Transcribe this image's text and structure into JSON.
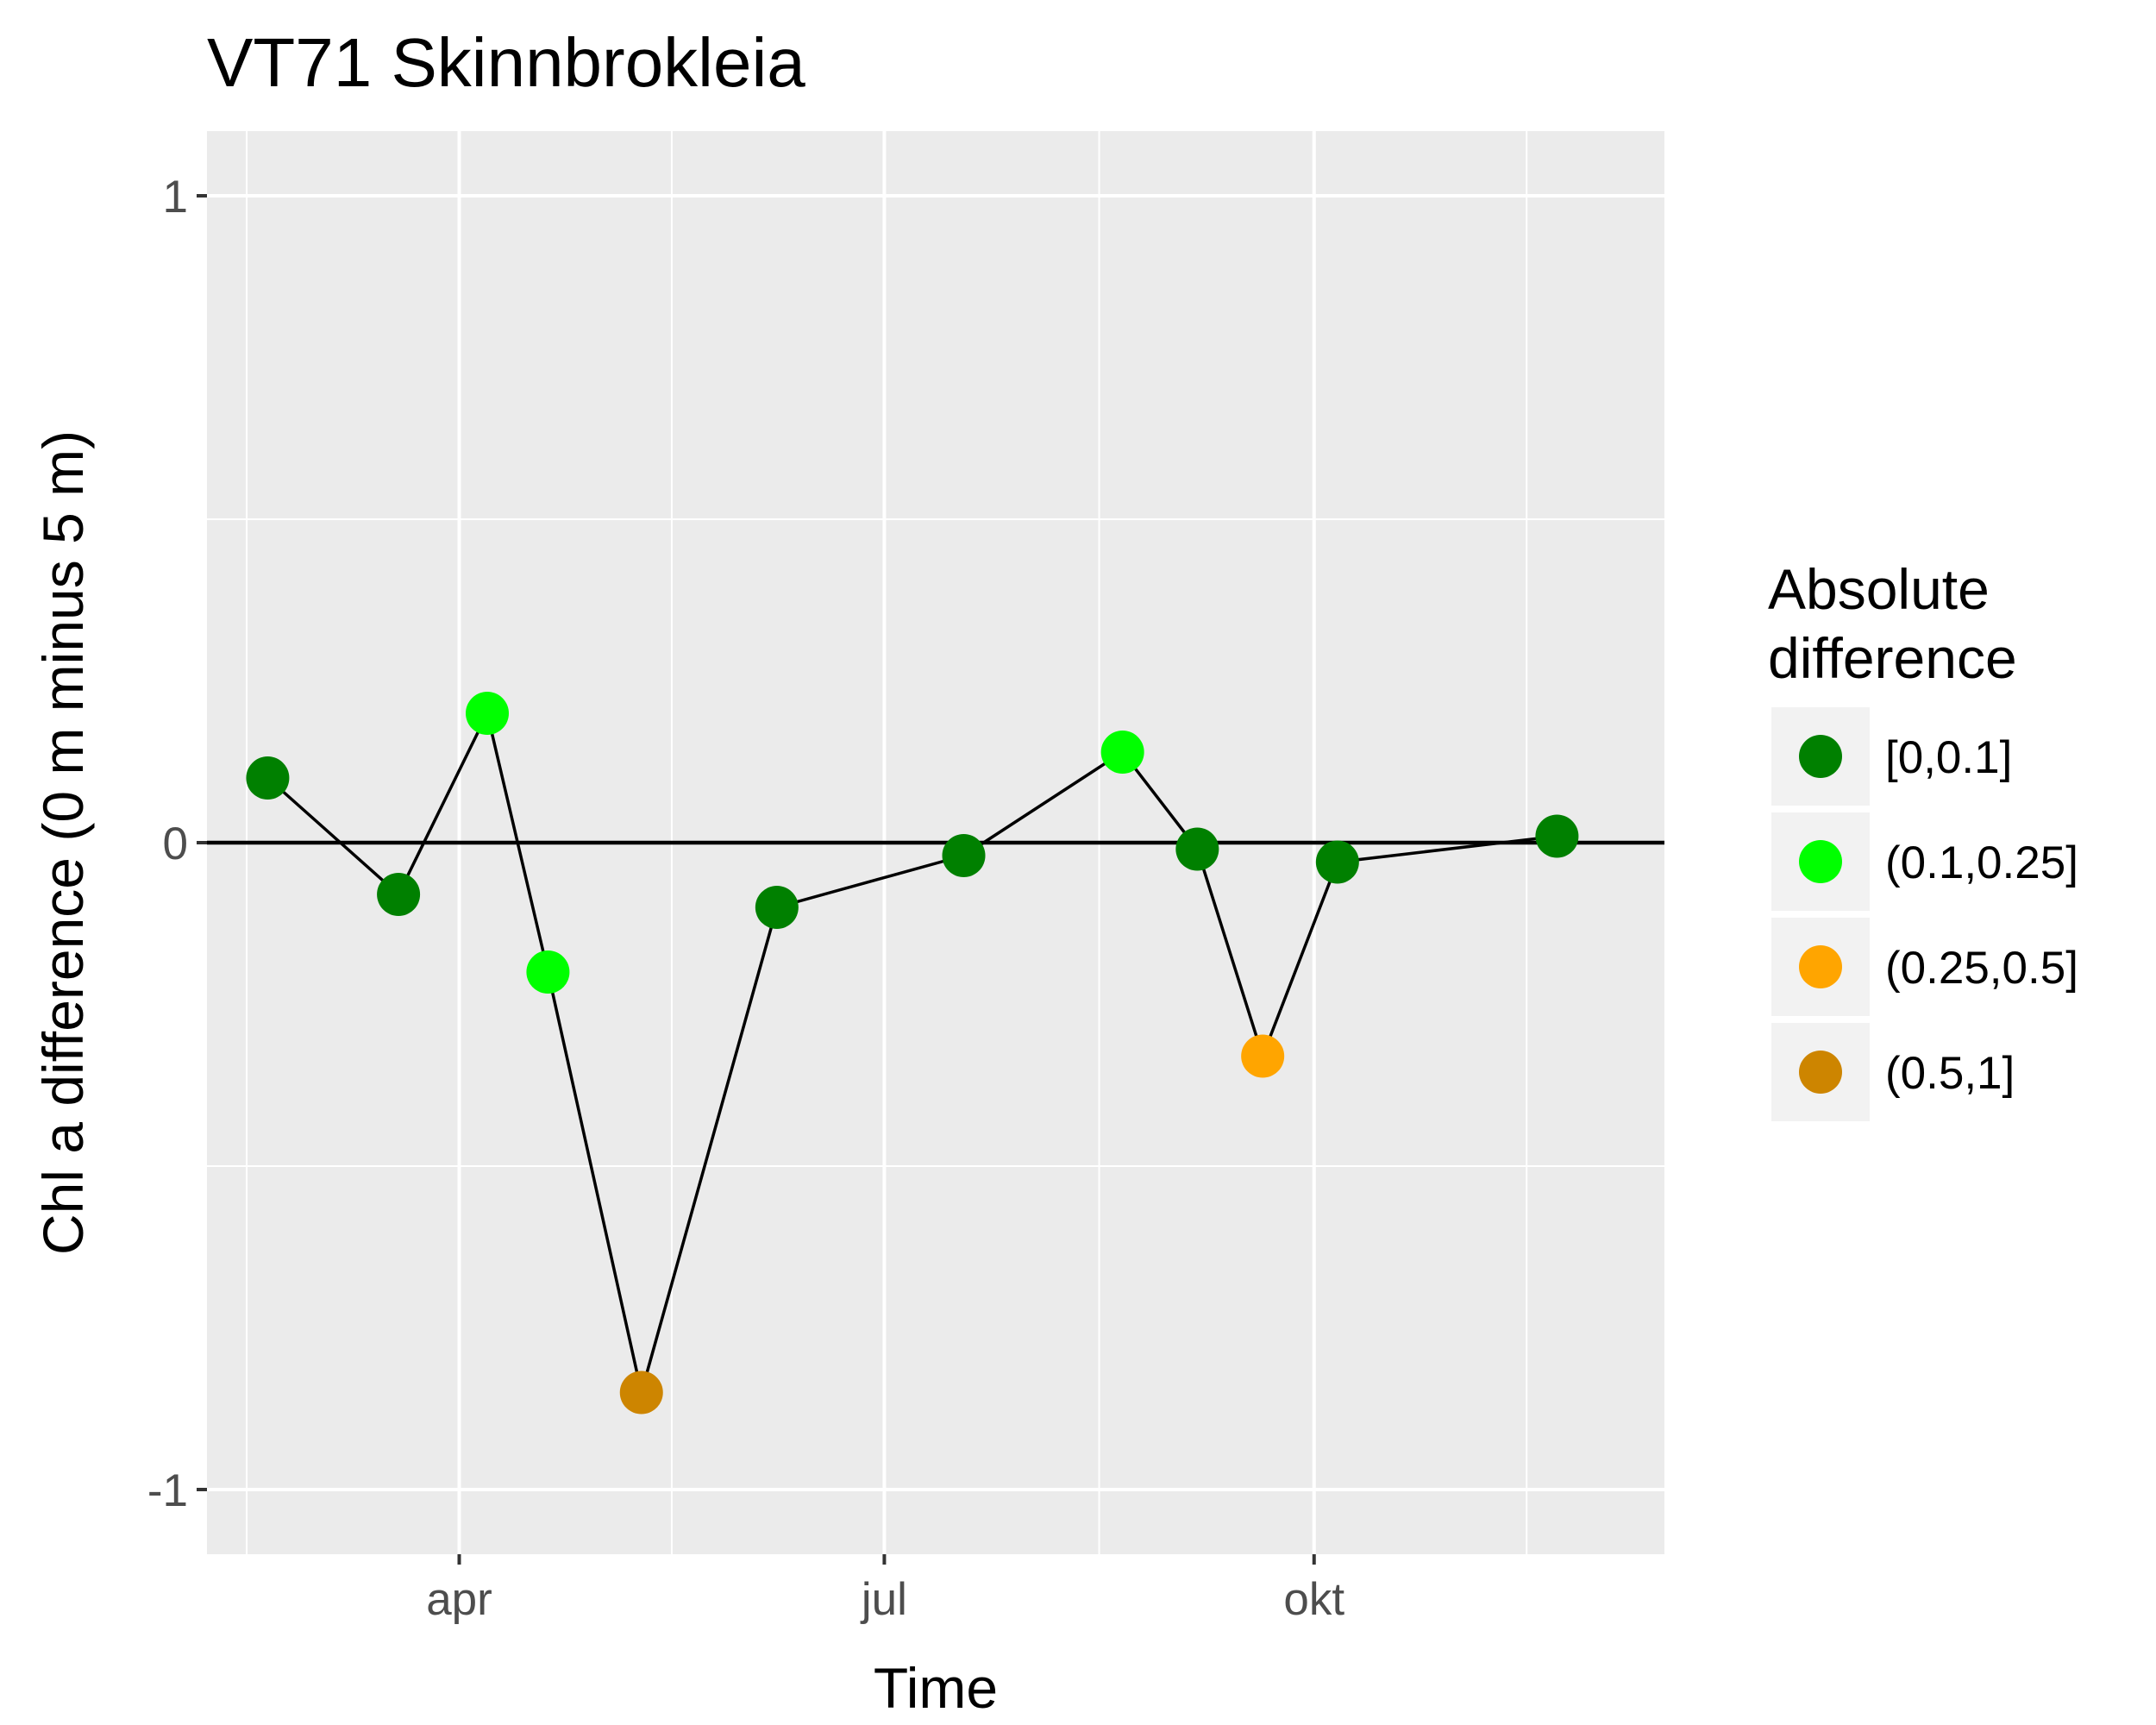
{
  "chart_data": {
    "type": "scatter",
    "title": "VT71 Skinnbrokleia",
    "xlabel": "Time",
    "ylabel": "Chl a difference (0 m minus 5 m)",
    "x_ticks": [
      {
        "date": "2019-04-01",
        "label": "apr"
      },
      {
        "date": "2019-07-01",
        "label": "jul"
      },
      {
        "date": "2019-10-01",
        "label": "okt"
      }
    ],
    "y_ticks": [
      {
        "value": 1,
        "label": "1"
      },
      {
        "value": 0,
        "label": "0"
      },
      {
        "value": -1,
        "label": "-1"
      }
    ],
    "xlim": [
      "2019-02-06",
      "2019-12-15"
    ],
    "ylim": [
      -1.1,
      1.1
    ],
    "grid": true,
    "reference_line": 0,
    "legend": {
      "title": [
        "Absolute",
        "difference"
      ],
      "position": "right",
      "entries": [
        {
          "label": "[0,0.1]",
          "color": "#008000"
        },
        {
          "label": "(0.1,0.25]",
          "color": "#00ff00"
        },
        {
          "label": "(0.25,0.5]",
          "color": "#ffa500"
        },
        {
          "label": "(0.5,1]",
          "color": "#cd8500"
        }
      ]
    },
    "points": [
      {
        "x": "2019-02-19",
        "y": 0.1,
        "class": "[0,0.1]"
      },
      {
        "x": "2019-03-19",
        "y": -0.08,
        "class": "[0,0.1]"
      },
      {
        "x": "2019-04-07",
        "y": 0.2,
        "class": "(0.1,0.25]"
      },
      {
        "x": "2019-04-20",
        "y": -0.2,
        "class": "(0.1,0.25]"
      },
      {
        "x": "2019-05-10",
        "y": -0.85,
        "class": "(0.5,1]"
      },
      {
        "x": "2019-06-08",
        "y": -0.1,
        "class": "[0,0.1]"
      },
      {
        "x": "2019-07-18",
        "y": -0.02,
        "class": "[0,0.1]"
      },
      {
        "x": "2019-08-21",
        "y": 0.14,
        "class": "(0.1,0.25]"
      },
      {
        "x": "2019-09-06",
        "y": -0.01,
        "class": "[0,0.1]"
      },
      {
        "x": "2019-09-20",
        "y": -0.33,
        "class": "(0.25,0.5]"
      },
      {
        "x": "2019-10-06",
        "y": -0.03,
        "class": "[0,0.1]"
      },
      {
        "x": "2019-11-22",
        "y": 0.01,
        "class": "[0,0.1]"
      }
    ]
  }
}
